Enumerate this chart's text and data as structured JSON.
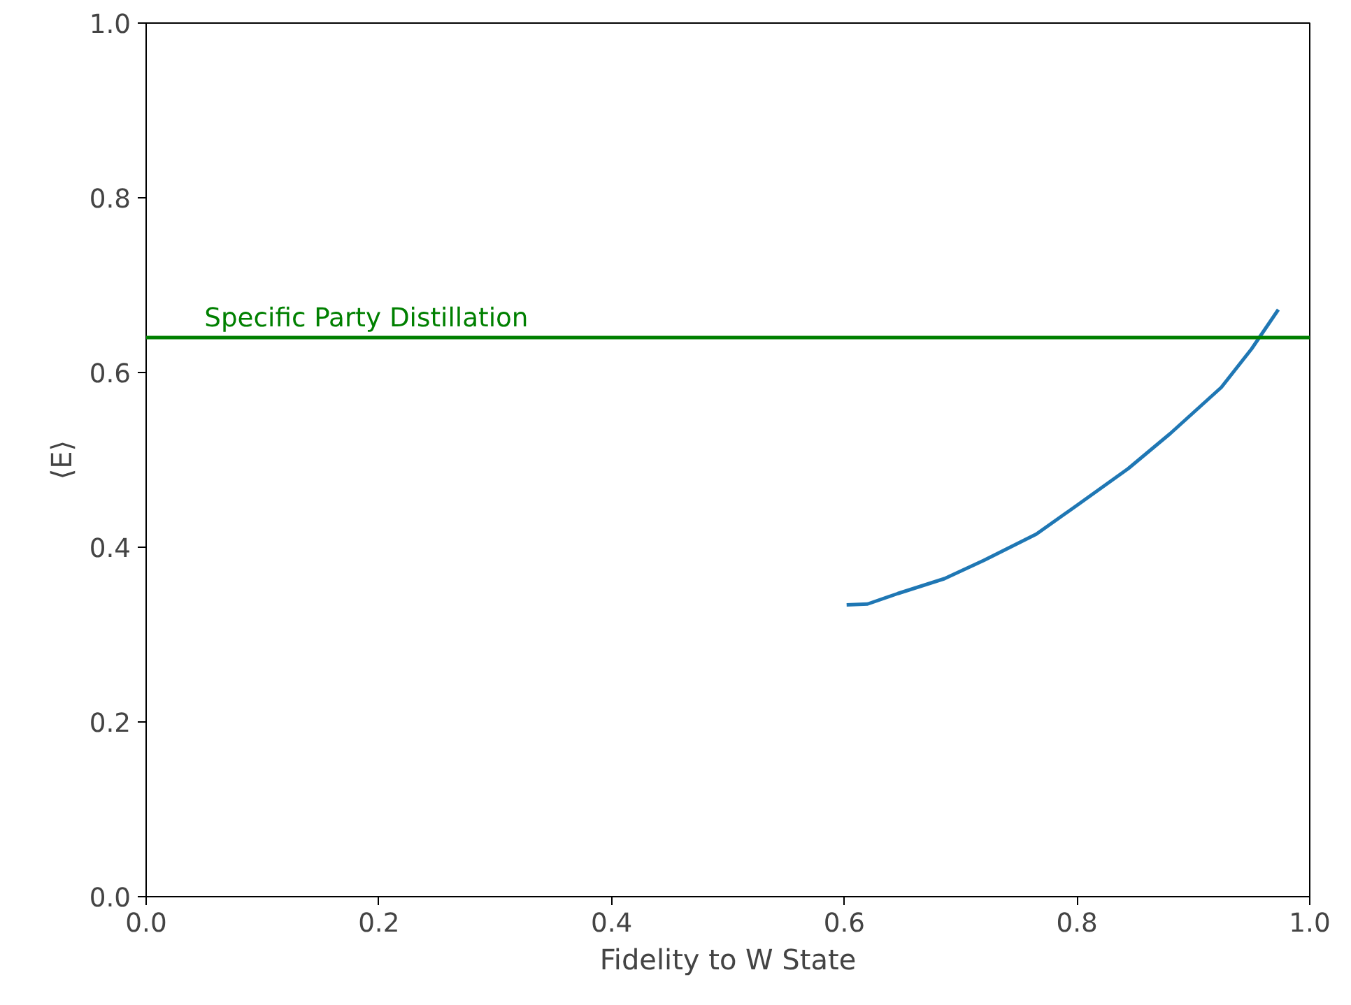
{
  "chart_data": {
    "type": "line",
    "xlabel": "Fidelity to W State",
    "ylabel": "⟨E⟩",
    "xlim": [
      0.0,
      1.0
    ],
    "ylim": [
      0.0,
      1.0
    ],
    "xticks": [
      {
        "value": 0,
        "label": "0.0"
      },
      0.2,
      0.4,
      0.6,
      0.8,
      {
        "value": 1,
        "label": "1.0"
      }
    ],
    "yticks": [
      {
        "value": 0,
        "label": "0.0"
      },
      0.2,
      0.4,
      0.6,
      0.8,
      {
        "value": 1,
        "label": "1.0"
      }
    ],
    "grid": false,
    "series": [
      {
        "color": "#1f77b4",
        "x": [
          0.602,
          0.62,
          0.646,
          0.686,
          0.72,
          0.765,
          0.8,
          0.844,
          0.88,
          0.924,
          0.95,
          0.973
        ],
        "values": [
          0.334,
          0.335,
          0.347,
          0.364,
          0.385,
          0.415,
          0.448,
          0.49,
          0.53,
          0.583,
          0.627,
          0.672
        ]
      }
    ],
    "ref_lines": [
      {
        "axis": "y",
        "value": 0.64,
        "label": "Specific Party Distillation",
        "color": "#008000"
      }
    ]
  }
}
